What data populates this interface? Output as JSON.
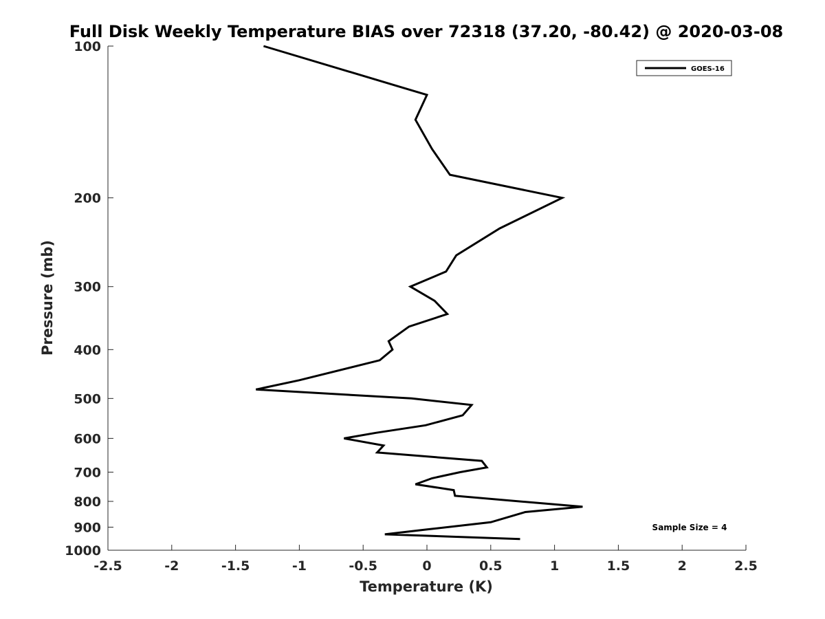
{
  "chart_data": {
    "type": "line",
    "title": "Full Disk Weekly Temperature BIAS over 72318 (37.20, -80.42) @ 2020-03-08",
    "xlabel": "Temperature (K)",
    "ylabel": "Pressure (mb)",
    "xlim": [
      -2.5,
      2.5
    ],
    "ylim": [
      1000,
      100
    ],
    "yscale": "log",
    "y_reversed": true,
    "x_ticks": [
      "-2.5",
      "-2",
      "-1.5",
      "-1",
      "-0.5",
      "0",
      "0.5",
      "1",
      "1.5",
      "2",
      "2.5"
    ],
    "y_ticks": [
      "100",
      "200",
      "300",
      "400",
      "500",
      "600",
      "700",
      "800",
      "900",
      "1000"
    ],
    "legend": {
      "placement": "top-right",
      "entries": [
        "GOES-16"
      ]
    },
    "annotation": "Sample Size = 4",
    "series": [
      {
        "name": "GOES-16",
        "color": "#000000",
        "x": [
          -1.28,
          0.0,
          -0.09,
          0.04,
          0.18,
          1.06,
          0.57,
          0.23,
          0.15,
          -0.13,
          0.06,
          0.16,
          -0.14,
          -0.3,
          -0.27,
          -0.37,
          -1.0,
          -1.34,
          -0.12,
          0.35,
          0.28,
          -0.01,
          -0.4,
          -0.65,
          -0.34,
          -0.39,
          0.43,
          0.47,
          0.26,
          0.04,
          -0.09,
          0.21,
          0.22,
          1.22,
          0.77,
          0.5,
          -0.01,
          -0.33,
          0.73
        ],
        "y": [
          100,
          125,
          140,
          160,
          180,
          200,
          230,
          260,
          280,
          300,
          320,
          340,
          360,
          385,
          400,
          420,
          460,
          480,
          500,
          515,
          540,
          565,
          585,
          600,
          620,
          640,
          665,
          685,
          700,
          720,
          740,
          760,
          780,
          820,
          840,
          880,
          910,
          930,
          950
        ]
      }
    ]
  }
}
